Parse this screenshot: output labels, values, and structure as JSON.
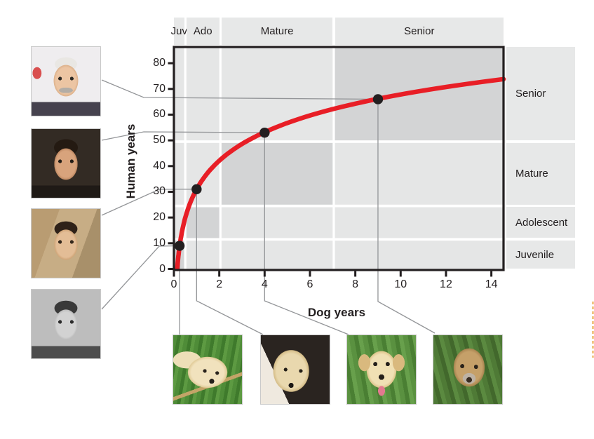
{
  "chart_data": {
    "type": "line",
    "xlabel": "Dog years",
    "ylabel": "Human years",
    "x_ticks": [
      0,
      2,
      4,
      6,
      8,
      10,
      12,
      14
    ],
    "y_ticks": [
      0,
      10,
      20,
      30,
      40,
      50,
      60,
      70,
      80
    ],
    "xlim": [
      0,
      14.54
    ],
    "ylim": [
      0,
      86.3
    ],
    "grid": false,
    "curve": {
      "name": "dog-to-human-age-curve",
      "formula": "human_years = 16 * ln(dog_years) + 31",
      "a": 16,
      "b": 31,
      "dog_min": 0.144,
      "dog_max": 14.54
    },
    "points": [
      {
        "dog_years": 0.25,
        "human_years": 9
      },
      {
        "dog_years": 1,
        "human_years": 31
      },
      {
        "dog_years": 4,
        "human_years": 53
      },
      {
        "dog_years": 9,
        "human_years": 66
      }
    ],
    "dog_stages": [
      {
        "label": "Juv",
        "from": 0,
        "to": 0.45
      },
      {
        "label": "Ado",
        "from": 0.55,
        "to": 2.0
      },
      {
        "label": "Mature",
        "from": 2.1,
        "to": 7.0
      },
      {
        "label": "Senior",
        "from": 7.1,
        "to": 14.54
      }
    ],
    "human_stages": [
      {
        "label": "Juvenile",
        "from": 0,
        "to": 11
      },
      {
        "label": "Adolescent",
        "from": 12,
        "to": 24
      },
      {
        "label": "Mature",
        "from": 25,
        "to": 49
      },
      {
        "label": "Senior",
        "from": 50,
        "to": 86.3
      }
    ]
  },
  "images": {
    "human_photos": [
      {
        "name": "tom-hanks-senior-photo"
      },
      {
        "name": "tom-hanks-mature-photo"
      },
      {
        "name": "tom-hanks-young-adult-photo"
      },
      {
        "name": "tom-hanks-juvenile-photo"
      }
    ],
    "dog_photos": [
      {
        "name": "labrador-puppy-photo"
      },
      {
        "name": "labrador-adolescent-photo"
      },
      {
        "name": "labrador-mature-photo"
      },
      {
        "name": "labrador-senior-photo"
      }
    ]
  },
  "colors": {
    "band_light": "#e5e6e6",
    "band_label_bg": "#e7e8e8",
    "band_dark": "#d3d4d5",
    "curve_red": "#e81e26",
    "axis_black": "#231f20",
    "connector_gray": "#939598",
    "point_black": "#231f20",
    "credit_orange": "#e9a43f"
  }
}
